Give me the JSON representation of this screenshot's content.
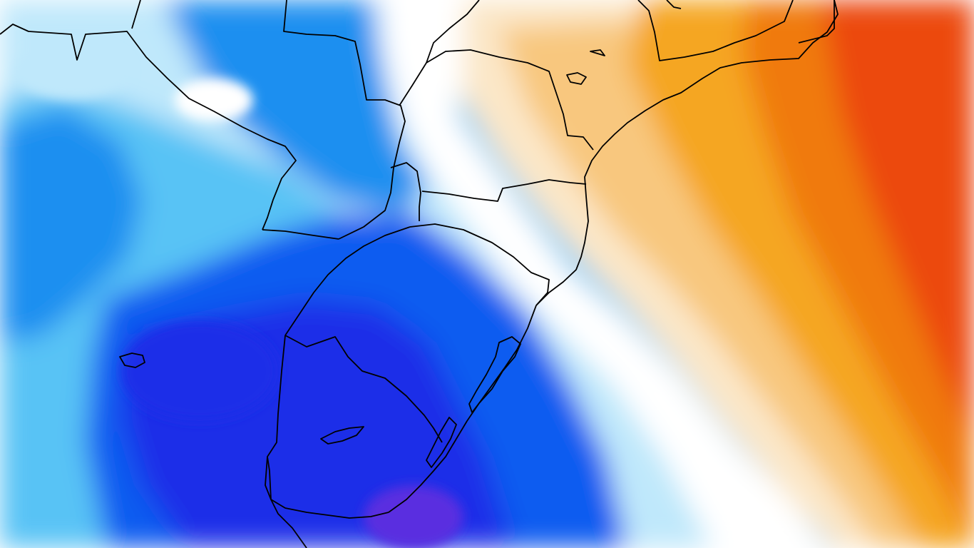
{
  "map": {
    "kind": "temperature anomaly field, South America (southern Brazil, Uruguay, Argentina)",
    "colors": {
      "cold_deep": "#1f2fe8",
      "cold_strong": "#0a5cf0",
      "cold_mid": "#1a8ff0",
      "cold_light": "#59c3f5",
      "cold_pale": "#bfe8fb",
      "neutral": "#ffffff",
      "warm_pale": "#fbe7c8",
      "warm_light": "#f8c77e",
      "warm_mid": "#f5a623",
      "warm_strong": "#f07a10",
      "warm_deep": "#ec4a0a",
      "purple_core": "#5a2fe0",
      "border": "#000000"
    },
    "icons": {
      "coastline": "coastline-line",
      "borders": "political-border-line"
    }
  }
}
